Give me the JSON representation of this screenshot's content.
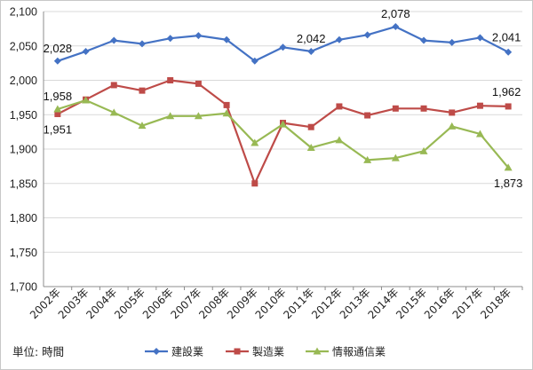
{
  "chart_data": {
    "type": "line",
    "categories": [
      "2002年",
      "2003年",
      "2004年",
      "2005年",
      "2006年",
      "2007年",
      "2008年",
      "2009年",
      "2010年",
      "2011年",
      "2012年",
      "2013年",
      "2014年",
      "2015年",
      "2016年",
      "2017年",
      "2018年"
    ],
    "series": [
      {
        "name": "建設業",
        "color": "#4472c4",
        "marker": "diamond",
        "values": [
          2028,
          2042,
          2058,
          2053,
          2061,
          2065,
          2059,
          2028,
          2048,
          2042,
          2059,
          2066,
          2078,
          2058,
          2055,
          2062,
          2041
        ]
      },
      {
        "name": "製造業",
        "color": "#be4b48",
        "marker": "square",
        "values": [
          1951,
          1972,
          1993,
          1985,
          2000,
          1995,
          1964,
          1850,
          1938,
          1932,
          1962,
          1949,
          1959,
          1959,
          1953,
          1963,
          1962
        ]
      },
      {
        "name": "情報通信業",
        "color": "#98b954",
        "marker": "triangle",
        "values": [
          1958,
          1971,
          1953,
          1934,
          1948,
          1948,
          1952,
          1909,
          1936,
          1902,
          1913,
          1884,
          1887,
          1897,
          1933,
          1922,
          1873
        ]
      }
    ],
    "data_labels": [
      {
        "series": 0,
        "index": 0,
        "text": "2,028"
      },
      {
        "series": 0,
        "index": 9,
        "text": "2,042"
      },
      {
        "series": 0,
        "index": 12,
        "text": "2,078"
      },
      {
        "series": 0,
        "index": 16,
        "text": "2,041"
      },
      {
        "series": 2,
        "index": 0,
        "text": "1,958"
      },
      {
        "series": 1,
        "index": 0,
        "text": "1,951"
      },
      {
        "series": 1,
        "index": 16,
        "text": "1,962"
      },
      {
        "series": 2,
        "index": 16,
        "text": "1,873"
      }
    ],
    "ylim": [
      1700,
      2100
    ],
    "yticks": [
      "1,700",
      "1,750",
      "1,800",
      "1,850",
      "1,900",
      "1,950",
      "2,000",
      "2,050",
      "2,100"
    ],
    "grid": true,
    "legend_position": "bottom",
    "unit_label": "単位: 時間"
  }
}
